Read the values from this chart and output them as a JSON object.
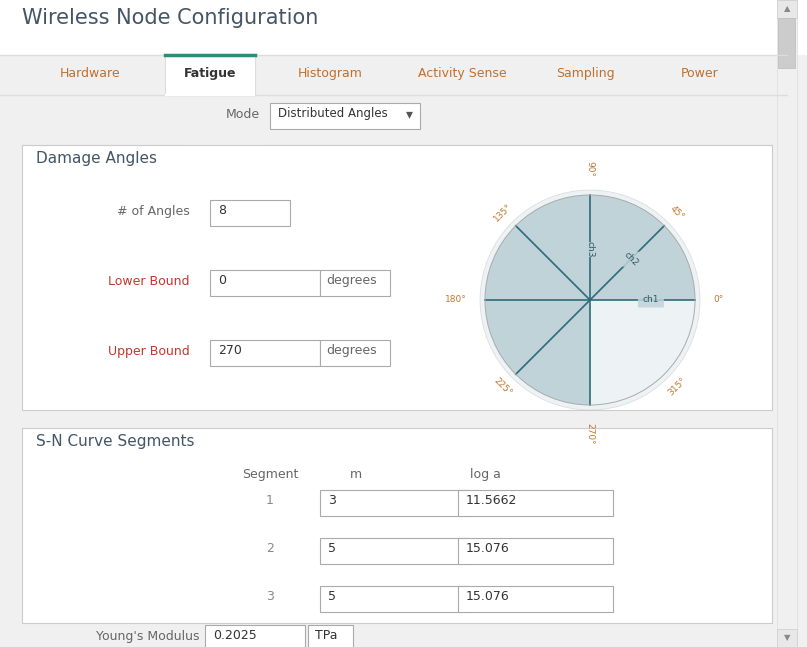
{
  "title": "Wireless Node Configuration",
  "tabs": [
    "Hardware",
    "Fatigue",
    "Histogram",
    "Activity Sense",
    "Sampling",
    "Power"
  ],
  "active_tab": "Fatigue",
  "active_tab_color": "#2e8b7a",
  "tab_inactive_color": "#c07030",
  "tab_active_text_color": "#333333",
  "mode_label": "Mode",
  "mode_value": "Distributed Angles",
  "damage_angles_title": "Damage Angles",
  "n_angles_label": "# of Angles",
  "n_angles_value": "8",
  "lower_bound_label": "Lower Bound",
  "lower_bound_value": "0",
  "lower_bound_unit": "degrees",
  "upper_bound_label": "Upper Bound",
  "upper_bound_value": "270",
  "upper_bound_unit": "degrees",
  "pie_fill_color": "#aec6cc",
  "pie_fill_alpha": 0.7,
  "pie_line_color": "#2e6b7a",
  "pie_circle_color": "#dce8ec",
  "sn_title": "S-N Curve Segments",
  "sn_col1": "Segment",
  "sn_col2": "m",
  "sn_col3": "log a",
  "sn_rows": [
    {
      "seg": "1",
      "m": "3",
      "log_a": "11.5662"
    },
    {
      "seg": "2",
      "m": "5",
      "log_a": "15.076"
    },
    {
      "seg": "3",
      "m": "5",
      "log_a": "15.076"
    }
  ],
  "youngs_label": "Young's Modulus",
  "youngs_value": "0.2025",
  "youngs_unit": "TPa",
  "bg_color": "#f0f0f0",
  "panel_bg": "#ffffff",
  "border_color": "#cccccc",
  "label_color_red": "#c0392b",
  "label_color_orange": "#c07830",
  "title_color": "#445566",
  "tab_color": "#c07030"
}
